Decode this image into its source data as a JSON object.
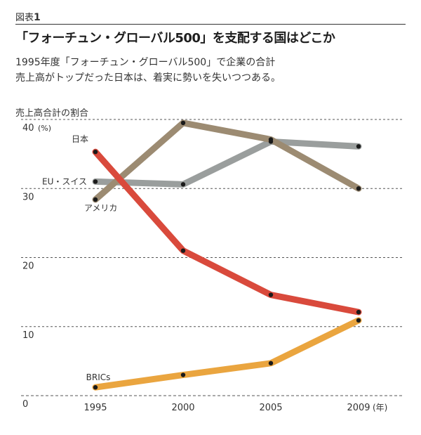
{
  "figure_label_prefix": "図表",
  "figure_label_number": "1",
  "title": "「フォーチュン・グローバル500」を支配する国はどこか",
  "subtitle_line1": "1995年度「フォーチュン・グローバル500」で企業の合計",
  "subtitle_line2": "売上高がトップだった日本は、着実に勢いを失いつつある。",
  "chart_data": {
    "type": "line",
    "ylabel": "売上高合計の割合",
    "y_unit": "(%)",
    "x_unit": "(年)",
    "ylim": [
      0,
      40
    ],
    "yticks": [
      0,
      10,
      20,
      30,
      40
    ],
    "ytick_labels": [
      "0",
      "10",
      "20",
      "30",
      "40"
    ],
    "x": [
      1995,
      2000,
      2005,
      2009
    ],
    "x_labels": [
      "1995",
      "2000",
      "2005",
      "2009"
    ],
    "grid": "horizontal dashed",
    "series": [
      {
        "name": "日本",
        "values": [
          35.3,
          21.0,
          14.6,
          12.1
        ],
        "color": "#d94a3c"
      },
      {
        "name": "EU・スイス",
        "values": [
          31.0,
          30.6,
          36.8,
          36.1
        ],
        "color": "#9a9e9d"
      },
      {
        "name": "アメリカ",
        "values": [
          28.4,
          39.5,
          37.1,
          30.0
        ],
        "color": "#9c8b72"
      },
      {
        "name": "BRICs",
        "values": [
          1.2,
          3.0,
          4.7,
          10.9
        ],
        "color": "#eaa53f"
      }
    ]
  }
}
